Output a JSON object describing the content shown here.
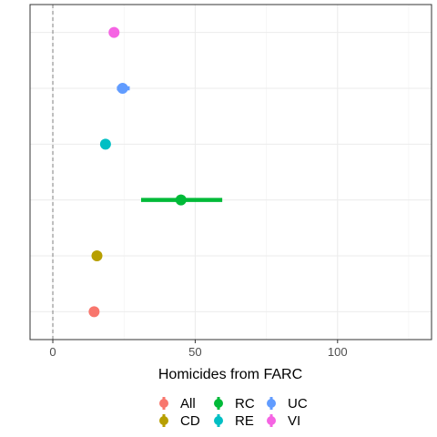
{
  "chart_data": {
    "type": "scatter",
    "xlabel": "Homicides from FARC",
    "xlim": [
      -8,
      133
    ],
    "x_ticks": [
      0,
      50,
      100
    ],
    "reference_line_x": 0,
    "grid": true,
    "legend_placement": "bottom",
    "series": [
      {
        "name": "All",
        "color": "#F8766D",
        "x": 14.5,
        "lo": 14.5,
        "hi": 14.5
      },
      {
        "name": "CD",
        "color": "#B79F00",
        "x": 15.5,
        "lo": 15.5,
        "hi": 15.5
      },
      {
        "name": "RC",
        "color": "#00BA38",
        "x": 45,
        "lo": 31,
        "hi": 59.5
      },
      {
        "name": "RE",
        "color": "#00BFC4",
        "x": 18.5,
        "lo": 18.5,
        "hi": 18.5
      },
      {
        "name": "UC",
        "color": "#619CFF",
        "x": 24.5,
        "lo": 22.5,
        "hi": 27
      },
      {
        "name": "VI",
        "color": "#F564E3",
        "x": 21.5,
        "lo": 21.5,
        "hi": 21.5
      }
    ],
    "legend": [
      {
        "name": "All",
        "color": "#F8766D"
      },
      {
        "name": "CD",
        "color": "#B79F00"
      },
      {
        "name": "RC",
        "color": "#00BA38"
      },
      {
        "name": "RE",
        "color": "#00BFC4"
      },
      {
        "name": "UC",
        "color": "#619CFF"
      },
      {
        "name": "VI",
        "color": "#F564E3"
      }
    ]
  }
}
